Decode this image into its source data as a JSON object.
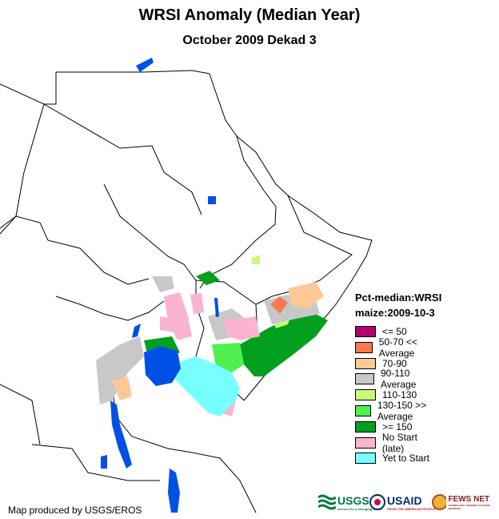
{
  "title": "WRSI Anomaly (Median Year)",
  "subtitle": "October 2009 Dekad 3",
  "legend": {
    "header1": "Pct-median:WRSI",
    "header2": "maize:2009-10-3",
    "items": [
      {
        "label": "<= 50",
        "color": "#b4006e"
      },
      {
        "label": "50-70 << Average",
        "color": "#fa7850"
      },
      {
        "label": "70-90",
        "color": "#fcc896"
      },
      {
        "label": "90-110 Average",
        "color": "#c8c8c8"
      },
      {
        "label": "110-130",
        "color": "#c8fa78"
      },
      {
        "label": "130-150 >> Average",
        "color": "#50f050"
      },
      {
        "label": ">= 150",
        "color": "#00a01e"
      },
      {
        "label": "No Start (late)",
        "color": "#fab4d2"
      },
      {
        "label": "Yet to Start",
        "color": "#78ffff"
      }
    ]
  },
  "credit": "Map produced by USGS/EROS",
  "logos": {
    "usgs": "USGS",
    "usgs_tagline": "science for a changing world",
    "usaid": "USAID",
    "usaid_tagline": "FROM THE AMERICAN PEOPLE",
    "fewsnet": "FEWS NET",
    "fewsnet_tagline": "FAMINE EARLY WARNING SYSTEMS NETWORK"
  },
  "colors": {
    "water": "#0050e6",
    "border": "#000000"
  }
}
